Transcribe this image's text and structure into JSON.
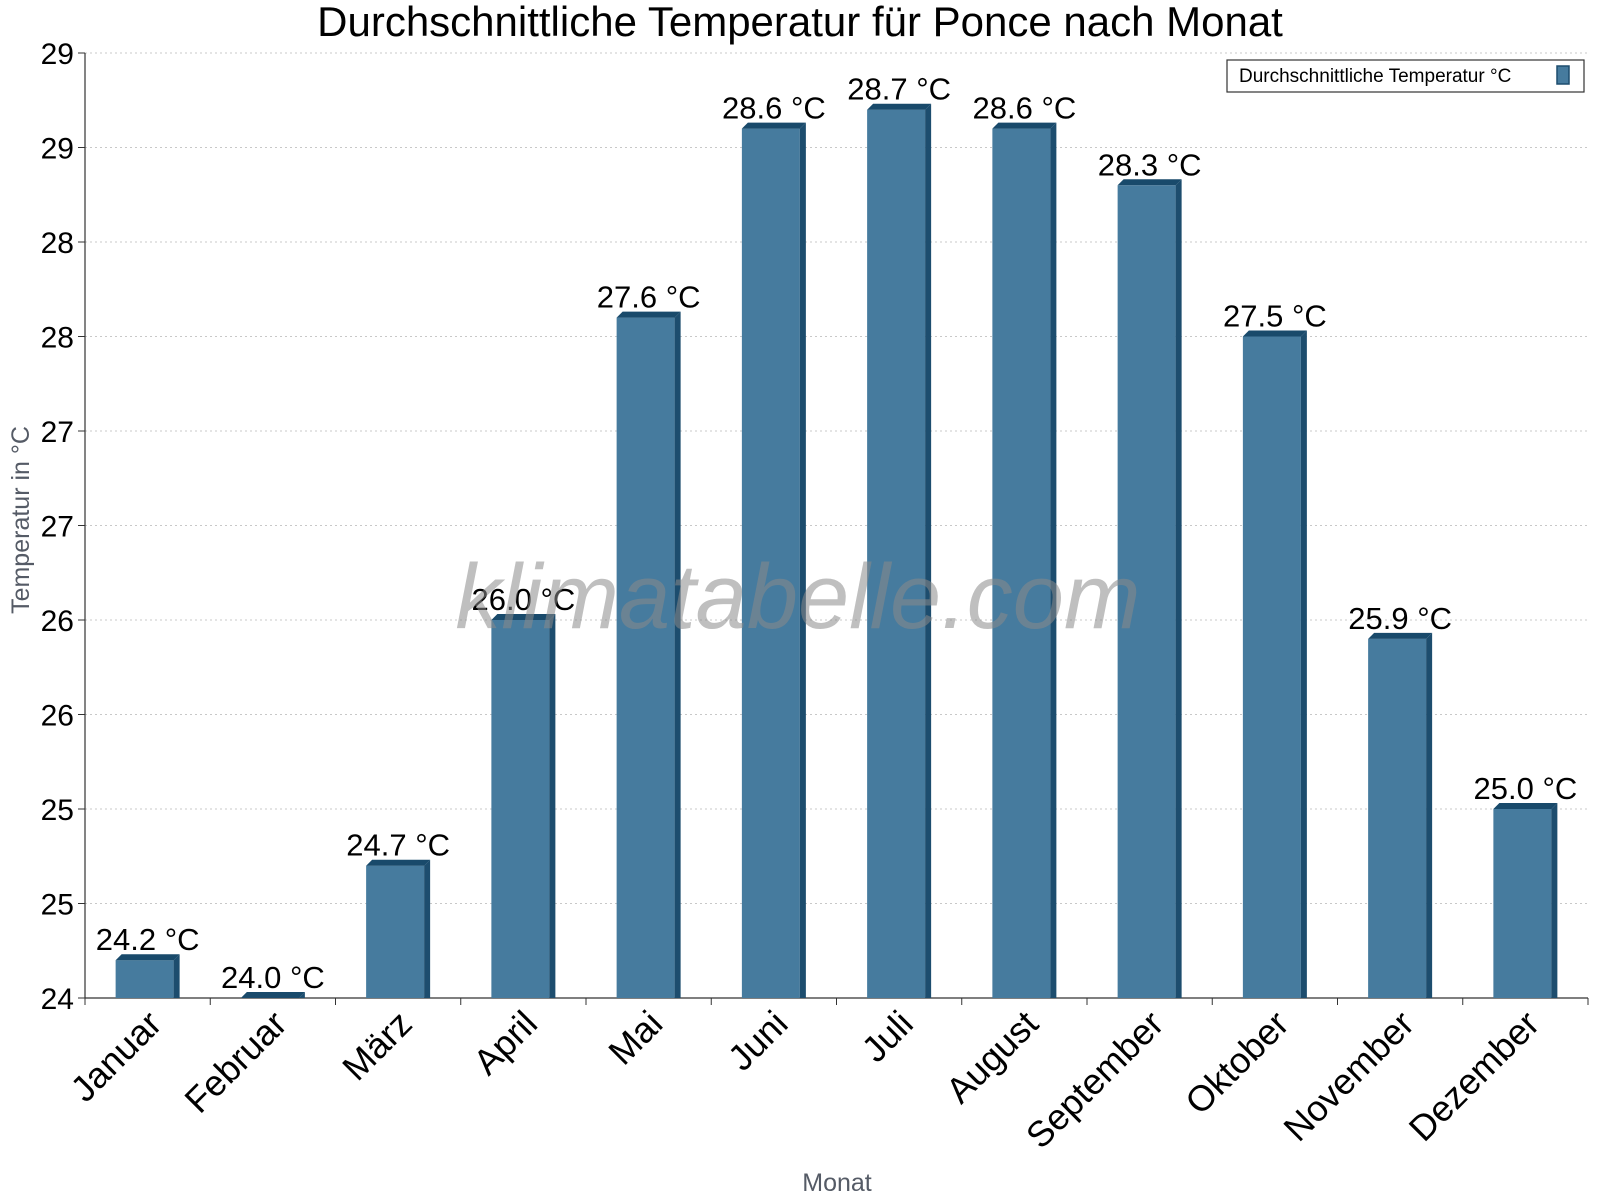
{
  "colors": {
    "bar_front": "#467b9e",
    "bar_side": "#1d4d6e",
    "bar_top": "#194a6b",
    "grid": "#c8c8c8",
    "axis": "#333333"
  },
  "watermark": "klimatabelle.com",
  "chart_data": {
    "type": "bar",
    "title": "Durchschnittliche Temperatur für Ponce nach Monat",
    "xlabel": "Monat",
    "ylabel": "Temperatur in °C",
    "ylim": [
      24.0,
      29.0
    ],
    "yticks": [
      24.0,
      24.5,
      25.0,
      25.5,
      26.0,
      26.5,
      27.0,
      27.5,
      28.0,
      28.5,
      29.0
    ],
    "ytick_labels": [
      "24",
      "25",
      "25",
      "26",
      "26",
      "27",
      "27",
      "28",
      "28",
      "29",
      "29"
    ],
    "grid": true,
    "legend_position": "top-right",
    "categories": [
      "Januar",
      "Februar",
      "März",
      "April",
      "Mai",
      "Juni",
      "Juli",
      "August",
      "September",
      "Oktober",
      "November",
      "Dezember"
    ],
    "series": [
      {
        "name": "Durchschnittliche Temperatur °C",
        "values": [
          24.2,
          24.0,
          24.7,
          26.0,
          27.6,
          28.6,
          28.7,
          28.6,
          28.3,
          27.5,
          25.9,
          25.0
        ],
        "labels": [
          "24.2 °C",
          "24.0 °C",
          "24.7 °C",
          "26.0 °C",
          "27.6 °C",
          "28.6 °C",
          "28.7 °C",
          "28.6 °C",
          "28.3 °C",
          "27.5 °C",
          "25.9 °C",
          "25.0 °C"
        ]
      }
    ]
  }
}
